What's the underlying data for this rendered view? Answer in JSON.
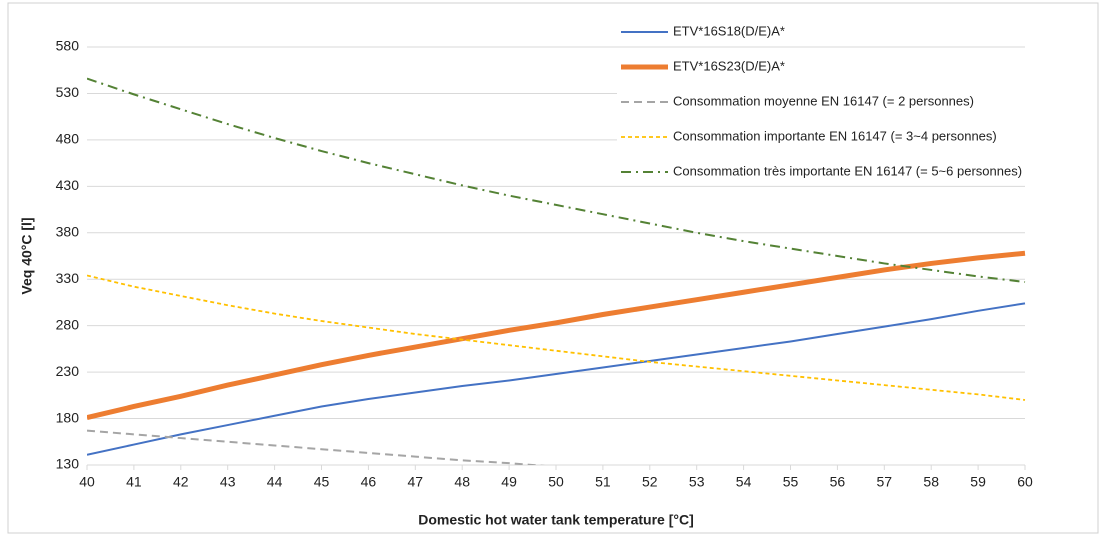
{
  "chart_data": {
    "type": "line",
    "x_label": "Domestic hot water tank temperature [°C]",
    "y_label": "Veq 40°C [l]",
    "x": [
      40,
      41,
      42,
      43,
      44,
      45,
      46,
      47,
      48,
      49,
      50,
      51,
      52,
      53,
      54,
      55,
      56,
      57,
      58,
      59,
      60
    ],
    "xlim": [
      40,
      60
    ],
    "xticks": [
      40,
      41,
      42,
      43,
      44,
      45,
      46,
      47,
      48,
      49,
      50,
      51,
      52,
      53,
      54,
      55,
      56,
      57,
      58,
      59,
      60
    ],
    "ylim": [
      130,
      580
    ],
    "yticks": [
      130,
      180,
      230,
      280,
      330,
      380,
      430,
      480,
      530,
      580
    ],
    "grid": true,
    "legend": "top-right",
    "series": [
      {
        "name": "ETV*16S18(D/E)A*",
        "color": "#4472c4",
        "dash": "solid",
        "width": 2,
        "values": [
          141,
          152,
          163,
          173,
          183,
          193,
          201,
          208,
          215,
          221,
          228,
          235,
          242,
          249,
          256,
          263,
          271,
          279,
          287,
          296,
          304
        ]
      },
      {
        "name": "ETV*16S23(D/E)A*",
        "color": "#ed7d31",
        "dash": "solid",
        "width": 5,
        "values": [
          181,
          193,
          204,
          216,
          227,
          238,
          248,
          257,
          266,
          275,
          283,
          292,
          300,
          308,
          316,
          324,
          332,
          340,
          347,
          353,
          358
        ]
      },
      {
        "name": "Consommation moyenne EN 16147 (= 2 personnes)",
        "color": "#a5a5a5",
        "dash": "dashed",
        "width": 2,
        "values": [
          167,
          163,
          159,
          155,
          151,
          147,
          143,
          139,
          135,
          132,
          128,
          null,
          null,
          null,
          null,
          null,
          null,
          null,
          null,
          null,
          null
        ]
      },
      {
        "name": "Consommation importante EN 16147 (= 3~4 personnes)",
        "color": "#ffc000",
        "dash": "dotted",
        "width": 1.8,
        "values": [
          334,
          322,
          312,
          302,
          293,
          285,
          278,
          271,
          265,
          259,
          253,
          247,
          241,
          236,
          231,
          226,
          221,
          216,
          211,
          206,
          200
        ]
      },
      {
        "name": "Consommation très importante EN 16147 (= 5~6 personnes)",
        "color": "#548235",
        "dash": "dashdot",
        "width": 2,
        "values": [
          546,
          529,
          513,
          497,
          482,
          468,
          455,
          443,
          431,
          420,
          410,
          400,
          390,
          380,
          371,
          363,
          355,
          347,
          340,
          333,
          327
        ]
      }
    ]
  }
}
